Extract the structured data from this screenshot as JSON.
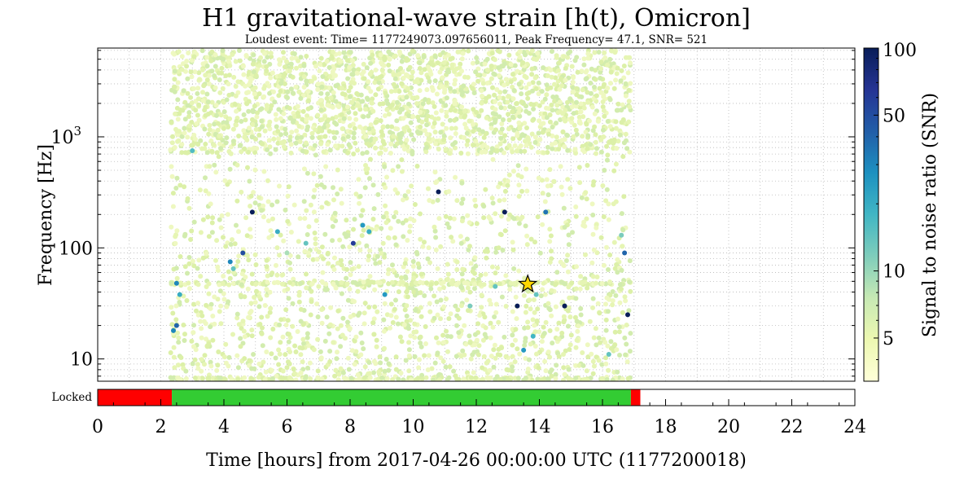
{
  "chart_data": {
    "type": "scatter",
    "title": "H1 gravitational-wave strain [h(t), Omicron]",
    "subtitle": "Loudest event: Time= 1177249073.097656011, Peak Frequency= 47.1, SNR= 521",
    "xlabel": "Time [hours] from 2017-04-26 00:00:00 UTC (1177200018)",
    "ylabel": "Frequency [Hz]",
    "colorbar_label": "Signal to noise ratio (SNR)",
    "xlim": [
      0,
      24
    ],
    "ylim": [
      6.3,
      6300
    ],
    "yscale": "log",
    "x_ticks": [
      "0",
      "2",
      "4",
      "6",
      "8",
      "10",
      "12",
      "14",
      "16",
      "18",
      "20",
      "22",
      "24"
    ],
    "y_ticks": [
      {
        "value": 10,
        "label": "10"
      },
      {
        "value": 100,
        "label": "100"
      },
      {
        "value": 1000,
        "label": "10",
        "sup": "3"
      }
    ],
    "colorbar": {
      "range": [
        3.2,
        100
      ],
      "scale": "log",
      "ticks": [
        {
          "value": 5,
          "label": "5"
        },
        {
          "value": 10,
          "label": "10"
        },
        {
          "value": 50,
          "label": "50"
        },
        {
          "value": 100,
          "label": "100"
        }
      ],
      "colors": [
        "#ffffd9",
        "#edf8b1",
        "#c7e9b4",
        "#7fcdbb",
        "#41b6c4",
        "#1d91c0",
        "#225ea8",
        "#253494",
        "#081d58"
      ]
    },
    "grid": true,
    "background_triggers": {
      "x_range": [
        2.3,
        16.9
      ],
      "freq_range": [
        6.3,
        6000
      ],
      "dense_upper_freq": 700,
      "snr_range": [
        5,
        7
      ],
      "horizontal_bands_hz": [
        48,
        6.6
      ]
    },
    "loud_events": [
      {
        "x": 3.0,
        "y": 750,
        "snr": 16
      },
      {
        "x": 4.9,
        "y": 210,
        "snr": 100
      },
      {
        "x": 10.8,
        "y": 320,
        "snr": 100
      },
      {
        "x": 12.9,
        "y": 210,
        "snr": 100
      },
      {
        "x": 14.2,
        "y": 210,
        "snr": 35
      },
      {
        "x": 8.1,
        "y": 110,
        "snr": 60
      },
      {
        "x": 8.4,
        "y": 160,
        "snr": 25
      },
      {
        "x": 8.6,
        "y": 140,
        "snr": 20
      },
      {
        "x": 5.7,
        "y": 140,
        "snr": 20
      },
      {
        "x": 6.6,
        "y": 110,
        "snr": 14
      },
      {
        "x": 4.2,
        "y": 75,
        "snr": 30
      },
      {
        "x": 4.6,
        "y": 90,
        "snr": 50
      },
      {
        "x": 4.3,
        "y": 65,
        "snr": 14
      },
      {
        "x": 16.7,
        "y": 90,
        "snr": 40
      },
      {
        "x": 16.6,
        "y": 130,
        "snr": 12
      },
      {
        "x": 2.5,
        "y": 48,
        "snr": 30
      },
      {
        "x": 2.6,
        "y": 38,
        "snr": 20
      },
      {
        "x": 9.1,
        "y": 38,
        "snr": 25
      },
      {
        "x": 13.3,
        "y": 30,
        "snr": 100
      },
      {
        "x": 14.8,
        "y": 30,
        "snr": 100
      },
      {
        "x": 16.8,
        "y": 25,
        "snr": 100
      },
      {
        "x": 2.5,
        "y": 20,
        "snr": 40
      },
      {
        "x": 2.4,
        "y": 18,
        "snr": 30
      },
      {
        "x": 11.8,
        "y": 30,
        "snr": 12
      },
      {
        "x": 12.6,
        "y": 45,
        "snr": 14
      },
      {
        "x": 13.9,
        "y": 38,
        "snr": 14
      },
      {
        "x": 13.5,
        "y": 12,
        "snr": 25
      },
      {
        "x": 13.8,
        "y": 16,
        "snr": 18
      },
      {
        "x": 16.2,
        "y": 11,
        "snr": 14
      },
      {
        "x": 6.0,
        "y": 90,
        "snr": 9
      }
    ],
    "loudest_event": {
      "x": 13.63,
      "y": 47.1,
      "snr": 521,
      "marker": "star"
    }
  },
  "state_bar": {
    "label": "Locked",
    "segments": [
      {
        "start": 0,
        "end": 2.35,
        "state": "off",
        "color": "#ff0000"
      },
      {
        "start": 2.35,
        "end": 16.9,
        "state": "on",
        "color": "#33cc33"
      },
      {
        "start": 16.9,
        "end": 17.2,
        "state": "off",
        "color": "#ff0000"
      }
    ]
  }
}
